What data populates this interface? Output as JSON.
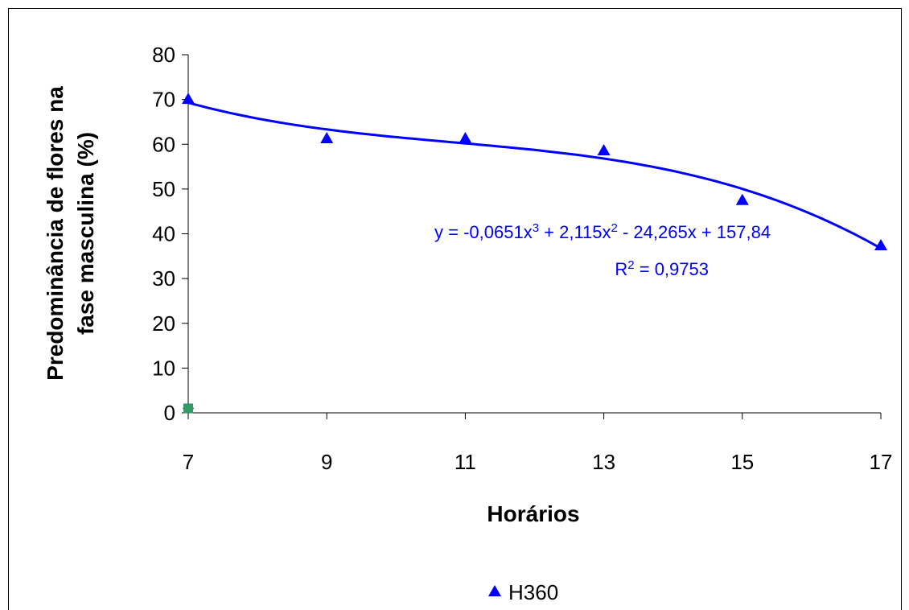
{
  "chart_data": {
    "type": "scatter",
    "y_label": [
      "Predominância de flores na",
      "fase masculina (%)"
    ],
    "x_label": "Horários",
    "xlim": [
      7,
      17
    ],
    "xticks": [
      7,
      9,
      11,
      13,
      15,
      17
    ],
    "ylim": [
      0,
      80
    ],
    "yticks": [
      0,
      10,
      20,
      30,
      40,
      50,
      60,
      70,
      80
    ],
    "series": [
      {
        "name": "H360",
        "color": "#0000ff",
        "marker": "triangle",
        "x": [
          7,
          9,
          11,
          13,
          15,
          17
        ],
        "values": [
          70.1,
          61.3,
          61.3,
          58.6,
          47.5,
          37.4
        ]
      },
      {
        "color": "#1a1a4d",
        "marker": "diamond",
        "x": [
          7
        ],
        "values": [
          1
        ]
      },
      {
        "color": "#339966",
        "marker": "square",
        "x": [
          7
        ],
        "values": [
          1
        ]
      }
    ],
    "trendline": {
      "color": "#0000ff",
      "coefficients": [
        157.84,
        -24.265,
        2.115,
        -0.0651
      ],
      "equation": [
        "y = -0,0651x",
        "3",
        " + 2,115x",
        "2",
        " - 24,265x + 157,84"
      ],
      "r_squared": [
        "R",
        "2",
        " = 0,9753"
      ]
    }
  }
}
